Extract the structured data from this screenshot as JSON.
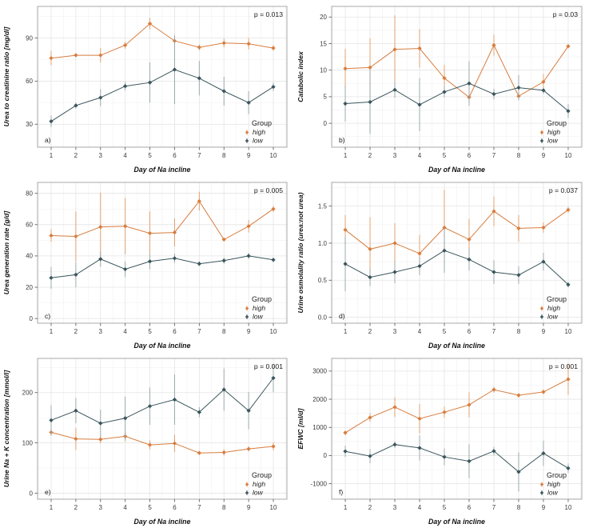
{
  "figure": {
    "background": "#ffffff",
    "x_categories": [
      1,
      2,
      3,
      4,
      5,
      6,
      7,
      8,
      9,
      10
    ]
  },
  "colors": {
    "high": "#d87d3f",
    "low": "#3a565c",
    "high_err": "#dd9a66",
    "low_err": "#93a3a6",
    "grid_major": "#e4e4e4",
    "grid_minor": "#f3f3f3",
    "panel_border": "#a8a8a8",
    "axis_text": "#3c3c3c",
    "title_text": "#111111"
  },
  "legend": {
    "title": "Group",
    "entries": [
      {
        "label": "high",
        "color_key": "high"
      },
      {
        "label": "low",
        "color_key": "low"
      }
    ]
  },
  "chart_data": [
    {
      "type": "line",
      "panel_letter": "a)",
      "p_label": "p = 0.013",
      "ylabel": "Urea to creatinine ratio [mg/dl]",
      "xlabel": "Day of Na incline",
      "x": [
        1,
        2,
        3,
        4,
        5,
        6,
        7,
        8,
        9,
        10
      ],
      "ylim": [
        14,
        112
      ],
      "yticks": [
        30,
        60,
        90
      ],
      "ytick_labels": [
        "30",
        "60",
        "90"
      ],
      "series": [
        {
          "name": "high",
          "values": [
            76,
            78,
            78,
            85,
            100,
            88,
            83.5,
            86.5,
            86,
            83
          ],
          "err": [
            5,
            1.5,
            5,
            2.5,
            4,
            3,
            2,
            3,
            4,
            2
          ]
        },
        {
          "name": "low",
          "values": [
            32,
            43,
            48.5,
            56.5,
            59,
            68,
            62,
            53,
            45,
            56
          ],
          "err": [
            4,
            2,
            6,
            3,
            14,
            24,
            12,
            10,
            8,
            3
          ]
        }
      ]
    },
    {
      "type": "line",
      "panel_letter": "b)",
      "p_label": "p = 0.03",
      "ylabel": "Catabolic index",
      "xlabel": "Day of Na incline",
      "x": [
        1,
        2,
        3,
        4,
        5,
        6,
        7,
        8,
        9,
        10
      ],
      "ylim": [
        -4.5,
        22
      ],
      "yticks": [
        0,
        5,
        10,
        15,
        20
      ],
      "ytick_labels": [
        "0",
        "5",
        "10",
        "15",
        "20"
      ],
      "series": [
        {
          "name": "high",
          "values": [
            10.3,
            10.5,
            13.9,
            14.1,
            8.5,
            4.9,
            14.7,
            5.1,
            7.8,
            14.5
          ],
          "err": [
            3.7,
            5.5,
            6.4,
            3.6,
            2.5,
            1.0,
            2.0,
            0.6,
            1.5,
            0.4
          ]
        },
        {
          "name": "low",
          "values": [
            3.7,
            4.0,
            6.3,
            3.5,
            5.9,
            7.5,
            5.5,
            6.7,
            6.2,
            2.3
          ],
          "err": [
            3.4,
            6.0,
            1.5,
            5.0,
            1.0,
            4.2,
            1.0,
            2.4,
            0.7,
            1.3
          ]
        }
      ]
    },
    {
      "type": "line",
      "panel_letter": "c)",
      "p_label": "p = 0.005",
      "ylabel": "Urea generation rate [g/d]",
      "xlabel": "Day of Na incline",
      "x": [
        1,
        2,
        3,
        4,
        5,
        6,
        7,
        8,
        9,
        10
      ],
      "ylim": [
        -3,
        87
      ],
      "yticks": [
        0,
        20,
        40,
        60,
        80
      ],
      "ytick_labels": [
        "0",
        "20",
        "40",
        "60",
        "80"
      ],
      "series": [
        {
          "name": "high",
          "values": [
            53,
            52.5,
            58.5,
            59,
            54.5,
            55,
            75,
            50.5,
            59,
            70
          ],
          "err": [
            4,
            16,
            22,
            18,
            14,
            9,
            6,
            1,
            4,
            2
          ]
        },
        {
          "name": "low",
          "values": [
            26,
            28,
            38,
            31.5,
            36.5,
            38.5,
            35,
            37,
            40,
            37.5
          ],
          "err": [
            7,
            8,
            5,
            5,
            5,
            3,
            1.5,
            2,
            2,
            1.5
          ]
        }
      ]
    },
    {
      "type": "line",
      "panel_letter": "d)",
      "p_label": "p = 0.037",
      "ylabel": "Urine osmolality ratio (urea:not urea)",
      "xlabel": "Day of Na incline",
      "x": [
        1,
        2,
        3,
        4,
        5,
        6,
        7,
        8,
        9,
        10
      ],
      "ylim": [
        -0.08,
        1.82
      ],
      "yticks": [
        0.0,
        0.5,
        1.0,
        1.5
      ],
      "ytick_labels": [
        "0.0",
        "0.5",
        "1.0",
        "1.5"
      ],
      "series": [
        {
          "name": "high",
          "values": [
            1.18,
            0.92,
            1.0,
            0.86,
            1.21,
            1.05,
            1.43,
            1.2,
            1.21,
            1.45
          ],
          "err": [
            0.2,
            0.43,
            0.27,
            0.25,
            0.51,
            0.28,
            0.2,
            0.18,
            0.07,
            0.04
          ]
        },
        {
          "name": "low",
          "values": [
            0.72,
            0.54,
            0.61,
            0.69,
            0.9,
            0.78,
            0.61,
            0.57,
            0.75,
            0.44
          ],
          "err": [
            0.37,
            0.12,
            0.15,
            0.12,
            0.3,
            0.15,
            0.16,
            0.12,
            0.12,
            0.04
          ]
        }
      ]
    },
    {
      "type": "line",
      "panel_letter": "e)",
      "p_label": "p = 0.001",
      "ylabel": "Urine Na + K concentration [mmol/l]",
      "xlabel": "Day of Na incline",
      "x": [
        1,
        2,
        3,
        4,
        5,
        6,
        7,
        8,
        9,
        10
      ],
      "ylim": [
        -12,
        268
      ],
      "yticks": [
        0,
        100,
        200
      ],
      "ytick_labels": [
        "0",
        "100",
        "200"
      ],
      "series": [
        {
          "name": "high",
          "values": [
            121,
            108,
            107,
            113,
            96,
            99,
            80,
            81,
            88,
            93
          ],
          "err": [
            7,
            22,
            8,
            10,
            9,
            17,
            4,
            6,
            5,
            8
          ]
        },
        {
          "name": "low",
          "values": [
            145,
            164,
            139,
            149,
            173,
            186,
            161,
            206,
            164,
            229
          ],
          "err": [
            30,
            25,
            27,
            43,
            37,
            50,
            10,
            42,
            37,
            28
          ]
        }
      ]
    },
    {
      "type": "line",
      "panel_letter": "f)",
      "p_label": "p = 0.001",
      "ylabel": "EFWC [ml/d]",
      "xlabel": "Day of Na incline",
      "x": [
        1,
        2,
        3,
        4,
        5,
        6,
        7,
        8,
        9,
        10
      ],
      "ylim": [
        -1550,
        3450
      ],
      "yticks": [
        -1000,
        0,
        1000,
        2000,
        3000
      ],
      "ytick_labels": [
        "-1000",
        "0",
        "1000",
        "2000",
        "3000"
      ],
      "series": [
        {
          "name": "high",
          "values": [
            810,
            1350,
            1720,
            1310,
            1540,
            1800,
            2340,
            2140,
            2260,
            2710
          ],
          "err": [
            80,
            150,
            350,
            520,
            200,
            450,
            100,
            80,
            90,
            550
          ]
        },
        {
          "name": "low",
          "values": [
            150,
            -20,
            390,
            270,
            -50,
            -200,
            160,
            -580,
            80,
            -450
          ],
          "err": [
            200,
            250,
            120,
            450,
            300,
            600,
            150,
            700,
            450,
            170
          ]
        }
      ]
    }
  ]
}
